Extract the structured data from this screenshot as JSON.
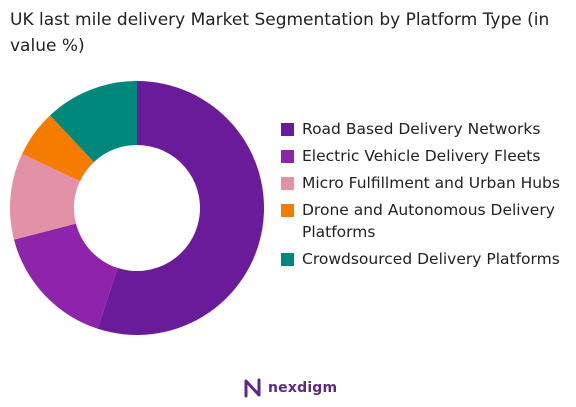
{
  "title": "UK last mile delivery Market Segmentation by Platform Type (in value %)",
  "brand": {
    "name": "nexdigm"
  },
  "chart_data": {
    "type": "pie",
    "style": "donut",
    "legend_position": "right",
    "series": [
      {
        "name": "Road Based Delivery Networks",
        "value": 55,
        "color": "#6a1b9a"
      },
      {
        "name": "Electric Vehicle Delivery Fleets",
        "value": 16,
        "color": "#8e24aa"
      },
      {
        "name": "Micro Fulfillment and Urban Hubs",
        "value": 11,
        "color": "#e391a6"
      },
      {
        "name": "Drone and Autonomous Delivery Platforms",
        "value": 6,
        "color": "#f57c00"
      },
      {
        "name": "Crowdsourced Delivery Platforms",
        "value": 12,
        "color": "#00897b"
      }
    ]
  }
}
